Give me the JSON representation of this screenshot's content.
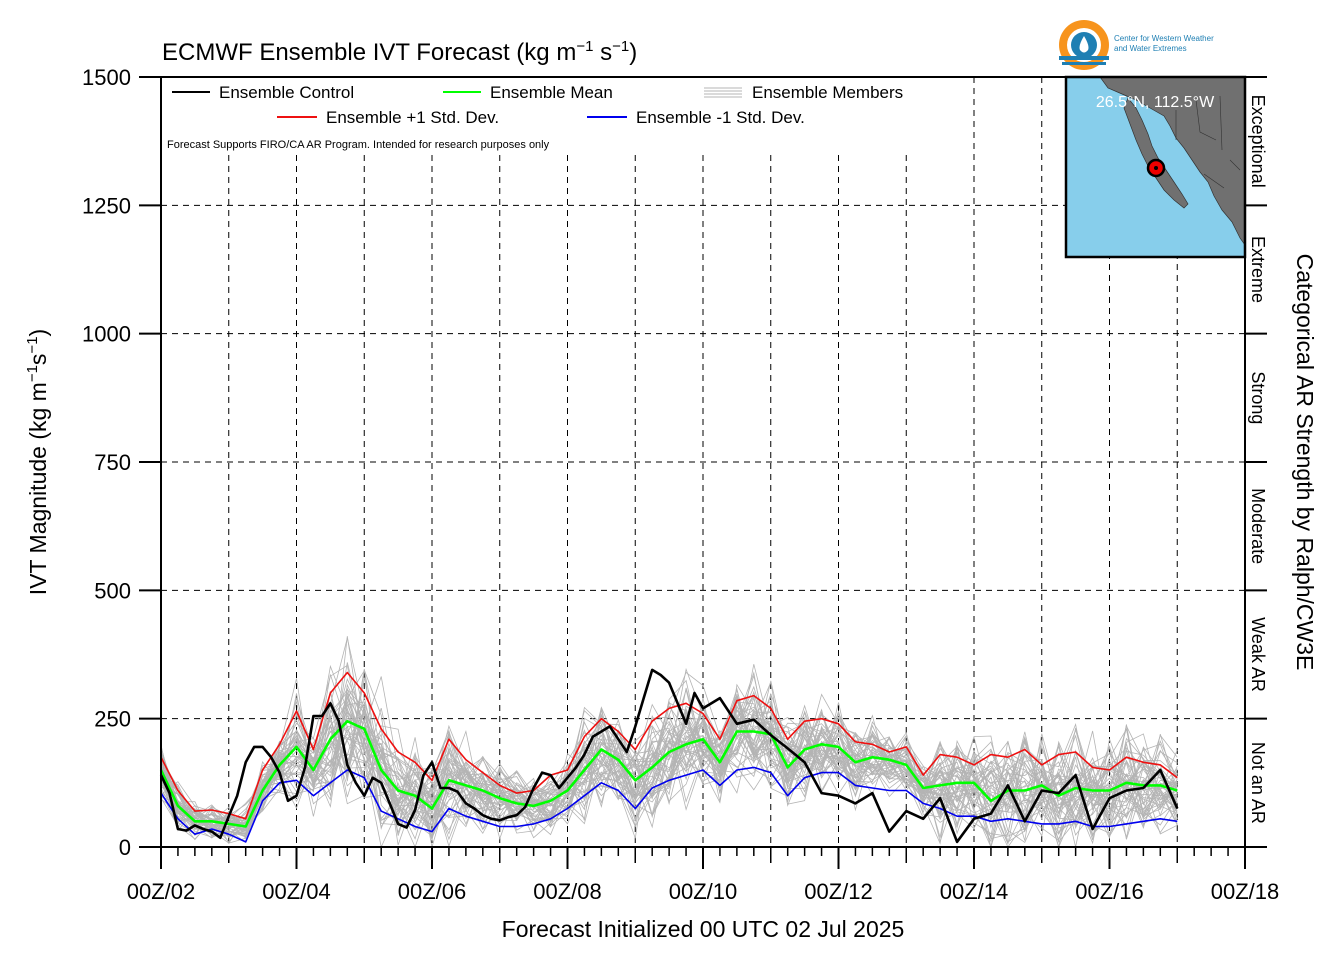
{
  "colors": {
    "control": "#000000",
    "mean": "#00ff00",
    "plus_sd": "#ee1111",
    "minus_sd": "#0000ee",
    "members": "#b4b4b4",
    "map_water": "#87ceeb",
    "map_land": "#707070",
    "marker": "#ee0000"
  },
  "logo": {
    "line1": "Center for Western Weather",
    "line2": "and Water Extremes"
  },
  "inset_map": {
    "label": "26.5°N, 112.5°W"
  },
  "chart_data": {
    "type": "line",
    "title": "ECMWF Ensemble IVT Forecast (kg m",
    "title_sup1": "−1",
    "title_mid": " s",
    "title_sup2": "−1",
    "title_end": ")",
    "ylabel": "IVT Magnitude (kg m",
    "ylabel_sup1": "−1",
    "ylabel_mid": "s",
    "ylabel_sup2": "−1",
    "ylabel_end": ")",
    "xlabel": "Forecast Initialized 00 UTC 02 Jul 2025",
    "right_label": "Categorical AR Strength by Ralph/CW3E",
    "note": "Forecast Supports FIRO/CA AR Program. Intended for research purposes only",
    "ylim": [
      0,
      1500
    ],
    "xlim": [
      0,
      384
    ],
    "x_unit": "forecast hour",
    "y_ticks": [
      0,
      250,
      500,
      750,
      1000,
      1250,
      1500
    ],
    "x_ticks": [
      {
        "hour": 0,
        "label": "00Z/02"
      },
      {
        "hour": 48,
        "label": "00Z/04"
      },
      {
        "hour": 96,
        "label": "00Z/06"
      },
      {
        "hour": 144,
        "label": "00Z/08"
      },
      {
        "hour": 192,
        "label": "00Z/10"
      },
      {
        "hour": 240,
        "label": "00Z/12"
      },
      {
        "hour": 288,
        "label": "00Z/14"
      },
      {
        "hour": 336,
        "label": "00Z/16"
      },
      {
        "hour": 384,
        "label": "00Z/18"
      }
    ],
    "categories": [
      {
        "label": "Not an AR",
        "min": 0,
        "max": 250
      },
      {
        "label": "Weak AR",
        "min": 250,
        "max": 500
      },
      {
        "label": "Moderate",
        "min": 500,
        "max": 750
      },
      {
        "label": "Strong",
        "min": 750,
        "max": 1000
      },
      {
        "label": "Extreme",
        "min": 1000,
        "max": 1250
      },
      {
        "label": "Exceptional",
        "min": 1250,
        "max": 1500
      }
    ],
    "legend": {
      "control": "Ensemble Control",
      "mean": "Ensemble Mean",
      "members": "Ensemble Members",
      "plus_sd": "Ensemble +1 Std. Dev.",
      "minus_sd": "Ensemble -1 Std. Dev."
    },
    "grid": true,
    "series": [
      {
        "name": "Ensemble Control",
        "key": "control",
        "x": [
          0,
          3,
          6,
          9,
          12,
          15,
          18,
          21,
          24,
          27,
          30,
          33,
          36,
          39,
          42,
          45,
          48,
          51,
          54,
          57,
          60,
          63,
          66,
          69,
          72,
          75,
          78,
          81,
          84,
          87,
          90,
          93,
          96,
          99,
          102,
          105,
          108,
          111,
          114,
          117,
          120,
          123,
          126,
          129,
          132,
          135,
          138,
          141,
          144,
          147,
          150,
          153,
          156,
          159,
          162,
          165,
          168,
          171,
          174,
          177,
          180,
          183,
          186,
          189,
          192,
          198,
          204,
          210,
          216,
          222,
          228,
          234,
          240,
          246,
          252,
          258,
          264,
          270,
          276,
          282,
          288,
          294,
          300,
          306,
          312,
          318,
          324,
          330,
          336,
          342,
          348,
          354,
          360
        ],
        "values": [
          140,
          105,
          35,
          32,
          42,
          35,
          30,
          18,
          60,
          100,
          165,
          195,
          195,
          175,
          145,
          90,
          100,
          155,
          255,
          255,
          280,
          245,
          160,
          125,
          100,
          135,
          125,
          85,
          45,
          38,
          72,
          140,
          165,
          115,
          115,
          108,
          85,
          75,
          62,
          55,
          52,
          58,
          62,
          78,
          115,
          145,
          140,
          115,
          135,
          155,
          180,
          215,
          225,
          235,
          210,
          185,
          235,
          290,
          345,
          335,
          320,
          280,
          240,
          300,
          270,
          290,
          240,
          248,
          218,
          192,
          165,
          105,
          100,
          85,
          105,
          30,
          70,
          55,
          95,
          10,
          55,
          65,
          120,
          50,
          110,
          105,
          140,
          35,
          95,
          110,
          115,
          150,
          75
        ]
      },
      {
        "name": "Ensemble Mean",
        "key": "mean",
        "x": [
          0,
          6,
          12,
          18,
          24,
          30,
          36,
          42,
          48,
          54,
          60,
          66,
          72,
          78,
          84,
          90,
          96,
          102,
          108,
          114,
          120,
          126,
          132,
          138,
          144,
          150,
          156,
          162,
          168,
          174,
          180,
          186,
          192,
          198,
          204,
          210,
          216,
          222,
          228,
          234,
          240,
          246,
          252,
          258,
          264,
          270,
          276,
          282,
          288,
          294,
          300,
          306,
          312,
          318,
          324,
          330,
          336,
          342,
          348,
          354,
          360
        ],
        "values": [
          150,
          80,
          50,
          50,
          45,
          40,
          110,
          160,
          195,
          150,
          210,
          245,
          230,
          150,
          110,
          100,
          75,
          130,
          120,
          110,
          95,
          85,
          80,
          90,
          110,
          150,
          190,
          170,
          130,
          155,
          185,
          200,
          210,
          165,
          225,
          225,
          220,
          155,
          190,
          200,
          195,
          165,
          175,
          170,
          160,
          115,
          120,
          125,
          125,
          90,
          110,
          110,
          120,
          100,
          115,
          110,
          110,
          125,
          120,
          120,
          110
        ]
      },
      {
        "name": "Ensemble +1 Std. Dev.",
        "key": "plus_sd",
        "x": [
          0,
          6,
          12,
          18,
          24,
          30,
          36,
          42,
          48,
          54,
          60,
          66,
          72,
          78,
          84,
          90,
          96,
          102,
          108,
          114,
          120,
          126,
          132,
          138,
          144,
          150,
          156,
          162,
          168,
          174,
          180,
          186,
          192,
          198,
          204,
          210,
          216,
          222,
          228,
          234,
          240,
          246,
          252,
          258,
          264,
          270,
          276,
          282,
          288,
          294,
          300,
          306,
          312,
          318,
          324,
          330,
          336,
          342,
          348,
          354,
          360
        ],
        "values": [
          175,
          110,
          70,
          72,
          65,
          55,
          150,
          200,
          265,
          190,
          300,
          340,
          300,
          230,
          185,
          165,
          130,
          210,
          170,
          145,
          120,
          105,
          110,
          140,
          150,
          215,
          250,
          225,
          190,
          245,
          270,
          280,
          260,
          210,
          285,
          295,
          270,
          210,
          245,
          250,
          240,
          205,
          200,
          185,
          195,
          140,
          180,
          175,
          160,
          180,
          175,
          190,
          160,
          180,
          185,
          155,
          150,
          175,
          165,
          160,
          135
        ]
      },
      {
        "name": "Ensemble -1 Std. Dev.",
        "key": "minus_sd",
        "x": [
          0,
          6,
          12,
          18,
          24,
          30,
          36,
          42,
          48,
          54,
          60,
          66,
          72,
          78,
          84,
          90,
          96,
          102,
          108,
          114,
          120,
          126,
          132,
          138,
          144,
          150,
          156,
          162,
          168,
          174,
          180,
          186,
          192,
          198,
          204,
          210,
          216,
          222,
          228,
          234,
          240,
          246,
          252,
          258,
          264,
          270,
          276,
          282,
          288,
          294,
          300,
          306,
          312,
          318,
          324,
          330,
          336,
          342,
          348,
          354,
          360
        ],
        "values": [
          105,
          55,
          25,
          35,
          25,
          10,
          90,
          125,
          130,
          100,
          125,
          150,
          135,
          70,
          55,
          40,
          30,
          75,
          60,
          50,
          40,
          40,
          45,
          55,
          75,
          100,
          125,
          110,
          75,
          115,
          130,
          140,
          150,
          120,
          150,
          155,
          145,
          100,
          135,
          145,
          145,
          120,
          115,
          110,
          110,
          85,
          75,
          60,
          60,
          50,
          55,
          50,
          45,
          45,
          50,
          40,
          40,
          45,
          50,
          55,
          50
        ]
      }
    ],
    "members_count": 50
  }
}
